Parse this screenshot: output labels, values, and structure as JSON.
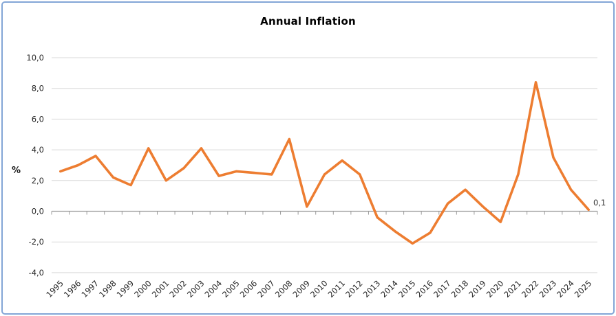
{
  "title": "Annual Inflation",
  "chart_data": {
    "type": "line",
    "title": "Annual Inflation",
    "xlabel": "",
    "ylabel": "%",
    "ylim": [
      -4,
      10
    ],
    "grid": true,
    "legend": "none",
    "decimal_separator": ",",
    "categories": [
      "1995",
      "1996",
      "1997",
      "1998",
      "1999",
      "2000",
      "2001",
      "2002",
      "2003",
      "2004",
      "2005",
      "2006",
      "2007",
      "2008",
      "2009",
      "2010",
      "2011",
      "2012",
      "2013",
      "2014",
      "2015",
      "2016",
      "2017",
      "2018",
      "2019",
      "2020",
      "2021",
      "2022",
      "2023",
      "2024",
      "2025"
    ],
    "values": [
      2.6,
      3.0,
      3.6,
      2.2,
      1.7,
      4.1,
      2.0,
      2.8,
      4.1,
      2.3,
      2.6,
      2.5,
      2.4,
      4.7,
      0.3,
      2.4,
      3.3,
      2.4,
      -0.4,
      -1.3,
      -2.1,
      -1.4,
      0.5,
      1.4,
      0.3,
      -0.7,
      2.4,
      8.4,
      3.5,
      1.4,
      0.1
    ],
    "ytick_values": [
      10,
      8,
      6,
      4,
      2,
      0,
      -2,
      -4
    ],
    "ytick_labels": [
      "10,0",
      "8,0",
      "6,0",
      "4,0",
      "2,0",
      "0,0",
      "-2,0",
      "-4,0"
    ],
    "last_point_label": "0,1",
    "colors": {
      "line": "#ED7D31",
      "gridline": "#D9D9D9",
      "axis": "#9b9b9b",
      "border": "#82a5d6",
      "text": "#262626"
    }
  }
}
